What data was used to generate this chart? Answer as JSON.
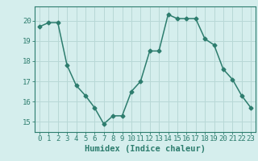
{
  "x": [
    0,
    1,
    2,
    3,
    4,
    5,
    6,
    7,
    8,
    9,
    10,
    11,
    12,
    13,
    14,
    15,
    16,
    17,
    18,
    19,
    20,
    21,
    22,
    23
  ],
  "y": [
    19.7,
    19.9,
    19.9,
    17.8,
    16.8,
    16.3,
    15.7,
    14.9,
    15.3,
    15.3,
    16.5,
    17.0,
    18.5,
    18.5,
    20.3,
    20.1,
    20.1,
    20.1,
    19.1,
    18.8,
    17.6,
    17.1,
    16.3,
    15.7
  ],
  "line_color": "#2d7d6e",
  "marker": "D",
  "markersize": 2.5,
  "linewidth": 1.1,
  "xlabel": "Humidex (Indice chaleur)",
  "ylim": [
    14.5,
    20.7
  ],
  "xlim": [
    -0.5,
    23.5
  ],
  "yticks": [
    15,
    16,
    17,
    18,
    19,
    20
  ],
  "xticks": [
    0,
    1,
    2,
    3,
    4,
    5,
    6,
    7,
    8,
    9,
    10,
    11,
    12,
    13,
    14,
    15,
    16,
    17,
    18,
    19,
    20,
    21,
    22,
    23
  ],
  "bg_color": "#d5eeed",
  "grid_color": "#b8d8d6",
  "axis_color": "#2d7d6e",
  "xlabel_fontsize": 7.5,
  "tick_fontsize": 6.5
}
